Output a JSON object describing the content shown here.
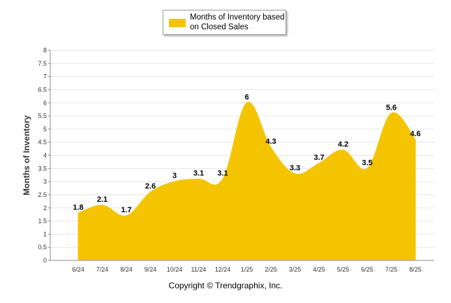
{
  "chart_data": {
    "type": "area",
    "categories": [
      "6/24",
      "7/24",
      "8/24",
      "9/24",
      "10/24",
      "11/24",
      "12/24",
      "1/25",
      "2/25",
      "3/25",
      "4/25",
      "5/25",
      "6/25",
      "7/25",
      "8/25"
    ],
    "series": [
      {
        "name": "Months of Inventory based on Closed Sales",
        "values": [
          1.8,
          2.1,
          1.7,
          2.6,
          3,
          3.1,
          3.1,
          6,
          4.3,
          3.3,
          3.7,
          4.2,
          3.5,
          5.6,
          4.6
        ],
        "labels": [
          "1.8",
          "2.1",
          "1.7",
          "2.6",
          "3",
          "3.1",
          "3.1",
          "6",
          "4.3",
          "3.3",
          "3.7",
          "4.2",
          "3.5",
          "5.6",
          "4.6"
        ]
      }
    ],
    "ylabel": "Months of Inventory",
    "xlabel": "",
    "ylim": [
      0,
      8
    ],
    "yticks": [
      "0",
      "0.5",
      "1",
      "1.5",
      "2",
      "2.5",
      "3",
      "3.5",
      "4",
      "4.5",
      "5",
      "5.5",
      "6",
      "6.5",
      "7",
      "7.5",
      "8"
    ],
    "grid": true,
    "legend_position": "top-center",
    "colors": {
      "fill": "#f5c400",
      "grid": "#e6e6e6",
      "axis": "#8c8c8c"
    }
  },
  "legend": {
    "label": "Months of Inventory based on Closed Sales"
  },
  "footer": {
    "copyright": "Copyright © Trendgraphix, Inc."
  }
}
